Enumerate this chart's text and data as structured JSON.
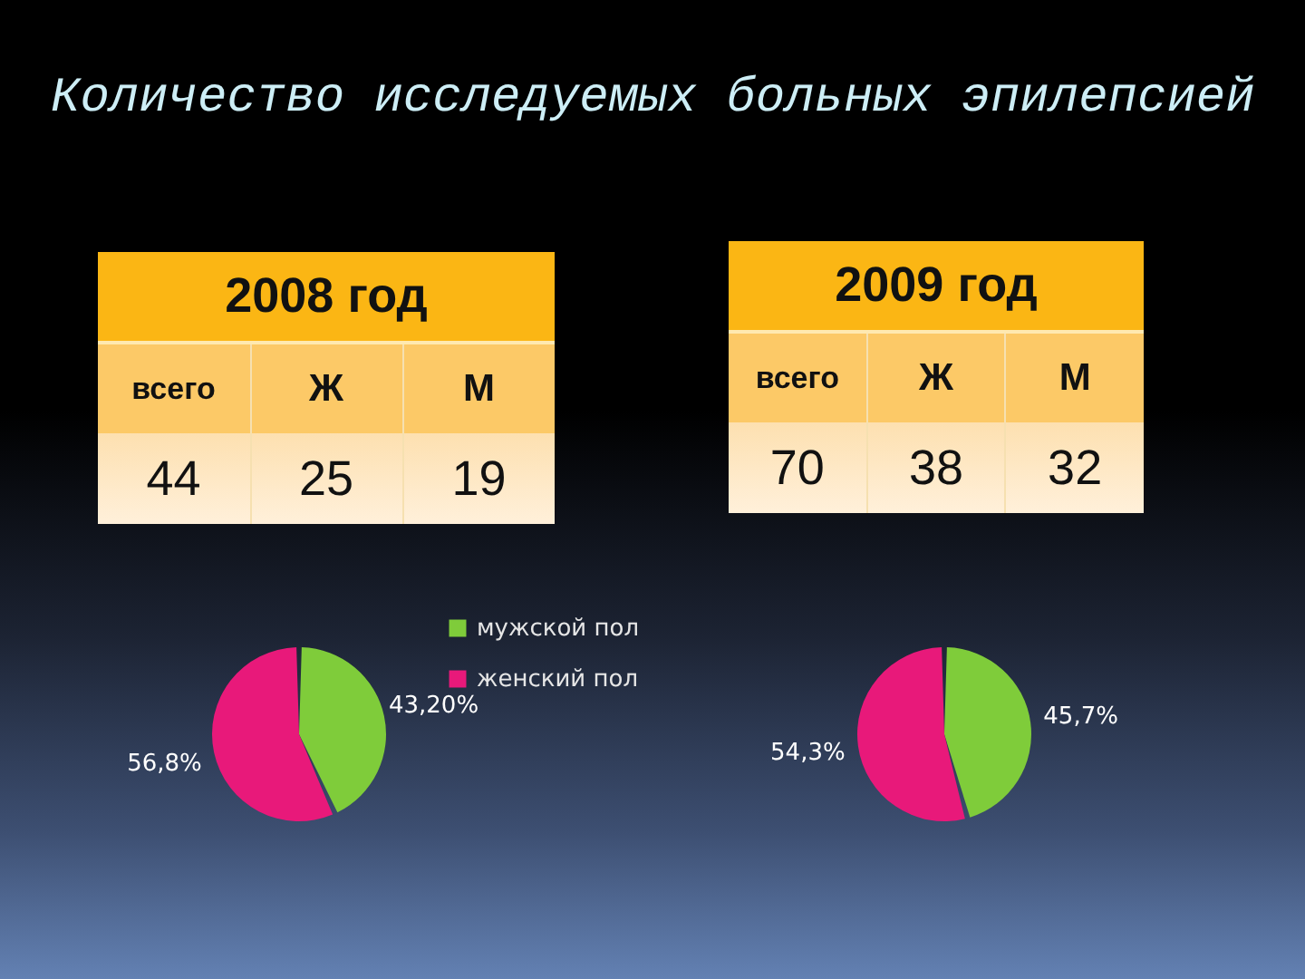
{
  "chart_data": [
    {
      "type": "pie",
      "title": "Количество исследуемых больных эпилепсией",
      "subtitle": "2008 год",
      "categories": [
        "мужской пол",
        "женский пол"
      ],
      "values": [
        43.2,
        56.8
      ],
      "colors": [
        "#7fcc3a",
        "#e8197a"
      ],
      "value_labels": [
        "43,20%",
        "56,8%"
      ],
      "annotations": [
        "всего",
        "Ж",
        "М",
        "44",
        "25",
        "19"
      ],
      "legend": "right"
    },
    {
      "type": "pie",
      "subtitle": "2009 год",
      "categories": [
        null,
        null
      ],
      "values": [
        45.7,
        54.3
      ],
      "colors": [
        "#7fcc3a",
        "#e8197a"
      ],
      "value_labels": [
        "45,7%",
        "54,3%"
      ],
      "annotations": [
        "всего",
        "Ж",
        "М",
        "70",
        "38",
        "32"
      ],
      "legend": false
    }
  ]
}
